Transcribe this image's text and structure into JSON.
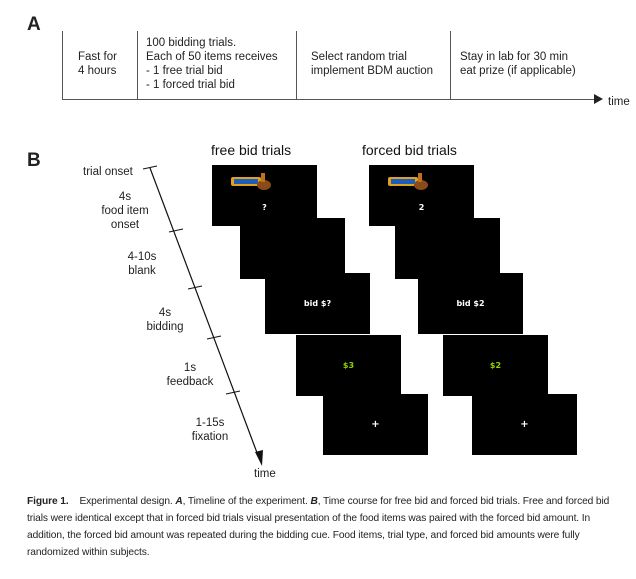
{
  "panel_a": {
    "letter": "A",
    "stages": [
      "Fast for\n4 hours",
      "100 bidding trials.\nEach of 50 items receives\n- 1 free trial bid\n- 1 forced trial bid",
      "Select random trial\nimplement BDM auction",
      "Stay in lab for 30 min\neat prize (if applicable)"
    ],
    "axis_label": "time"
  },
  "panel_b": {
    "letter": "B",
    "free_title": "free bid trials",
    "forced_title": "forced bid trials",
    "free_screens": [
      "?",
      "",
      "bid $?",
      "$3",
      "+"
    ],
    "forced_screens": [
      "2",
      "",
      "bid $2",
      "$2",
      "+"
    ],
    "timeline": {
      "onset": "trial onset",
      "phases": [
        "4s\nfood item\nonset",
        "4-10s\nblank",
        "4s\nbidding",
        "1s\nfeedback",
        "1-15s\nfixation"
      ],
      "axis_label": "time"
    },
    "colors": {
      "screen_bg": "#000000",
      "feedback_text": "#8fd400",
      "food_wrapper": "#e0a020"
    }
  },
  "caption": {
    "fig_label": "Figure 1.",
    "intro": "Experimental design. ",
    "a_label": "A",
    "a_text": ", Timeline of the experiment. ",
    "b_label": "B",
    "b_text": ", Time course for free bid and forced bid trials. Free and forced bid trials were identical except that in forced bid trials visual presentation of the food items was paired with the forced bid amount. In addition, the forced bid amount was repeated during the bidding cue. Food items, trial type, and forced bid amounts were fully randomized within subjects."
  }
}
